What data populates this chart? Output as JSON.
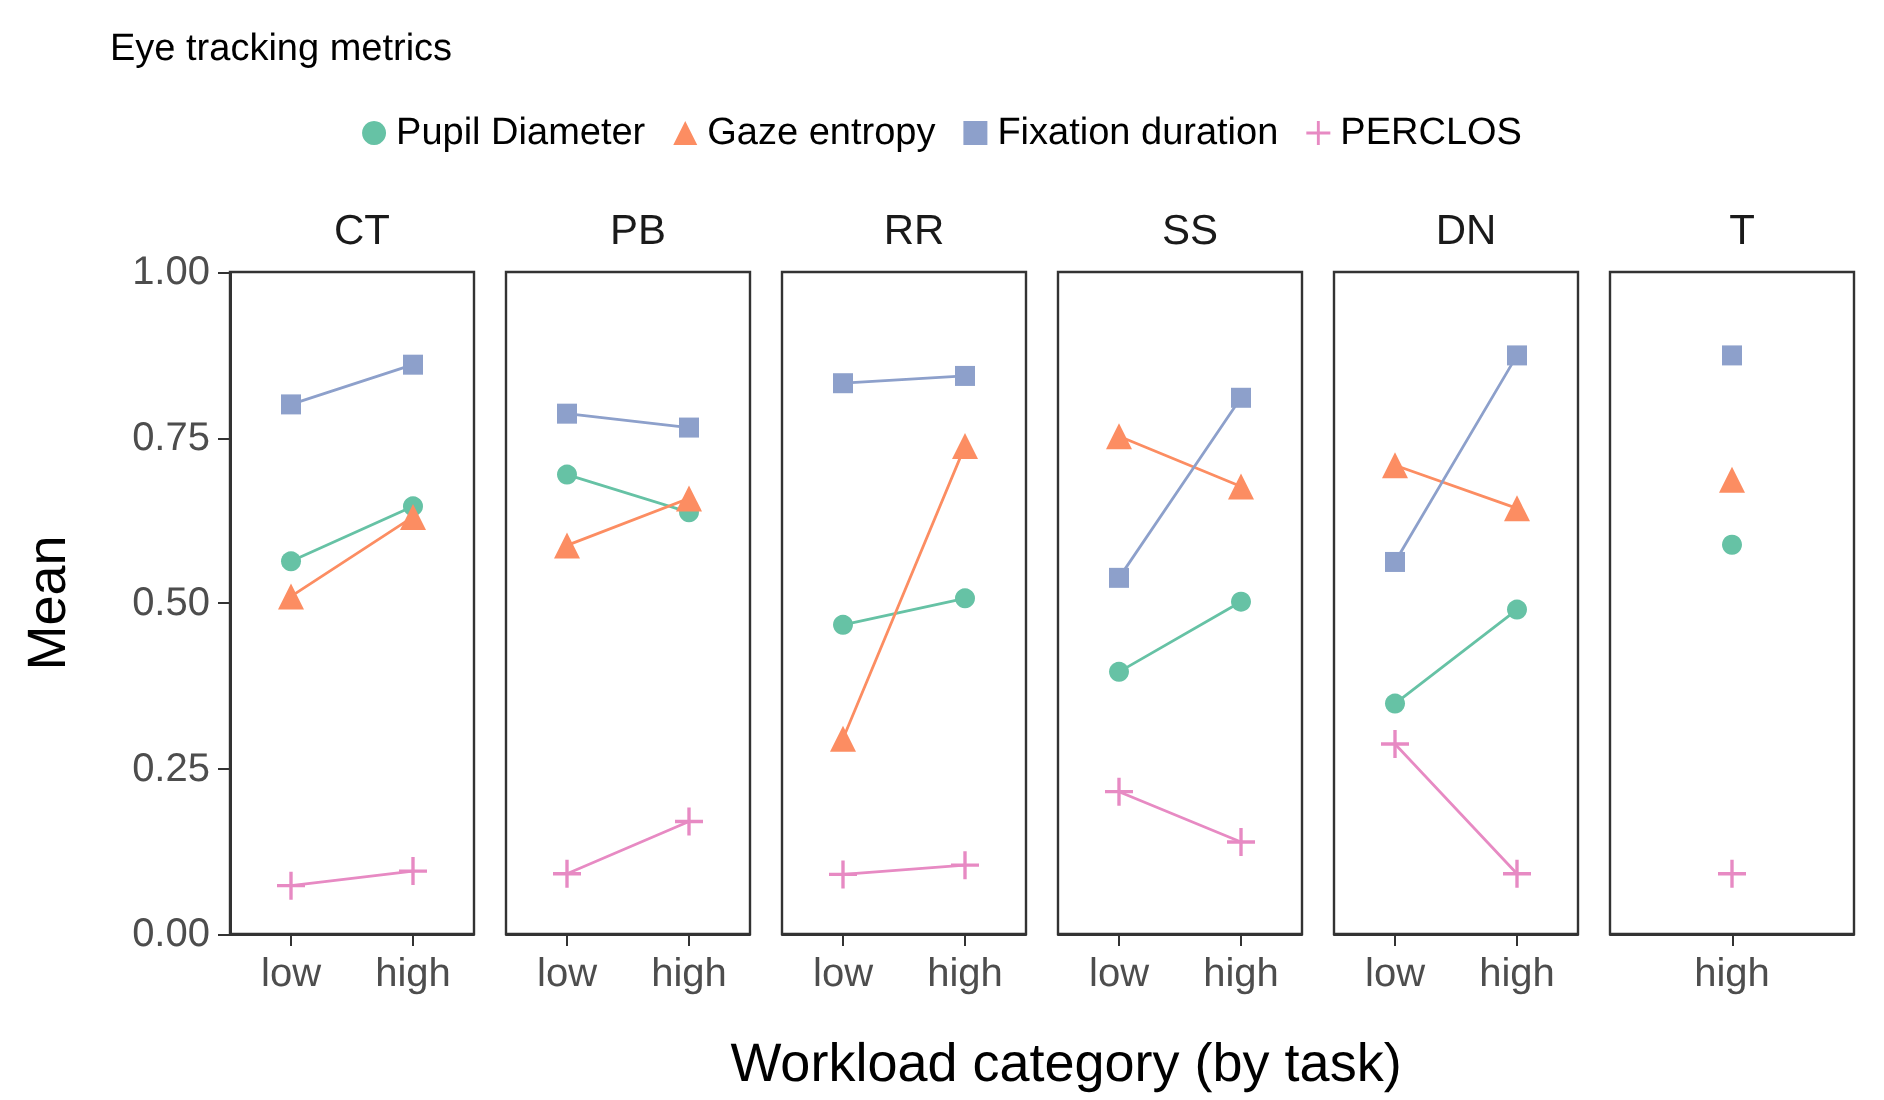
{
  "chart_data": [
    {
      "type": "line",
      "title": "CT",
      "legend_title": "Eye tracking metrics",
      "legend": "top",
      "xlabel": "Workload category (by task)",
      "ylabel": "Mean",
      "categories": [
        "low",
        "high"
      ],
      "ylim": [
        0,
        1
      ],
      "yticks": [
        {
          "value": 0,
          "label": "0.00"
        },
        {
          "value": 0.25,
          "label": "0.25"
        },
        {
          "value": 0.5,
          "label": "0.50"
        },
        {
          "value": 0.75,
          "label": "0.75"
        },
        {
          "value": 1,
          "label": "1.00"
        }
      ],
      "series": [
        {
          "name": "Pupil Diameter",
          "color": "#66c2a5",
          "marker": "circle",
          "values": [
            0.563,
            0.646
          ]
        },
        {
          "name": "Gaze entropy",
          "color": "#fc8d62",
          "marker": "triangle",
          "values": [
            0.51,
            0.63
          ]
        },
        {
          "name": "Fixation duration",
          "color": "#8da0cb",
          "marker": "square",
          "values": [
            0.8,
            0.86
          ]
        },
        {
          "name": "PERCLOS",
          "color": "#e78ac3",
          "marker": "cross",
          "values": [
            0.073,
            0.095
          ]
        }
      ]
    },
    {
      "type": "line",
      "title": "PB",
      "tick_labels": "x",
      "categories": [
        "low",
        "high"
      ],
      "ylim": [
        0,
        1
      ],
      "series": [
        {
          "color": "#66c2a5",
          "marker": "circle",
          "values": [
            0.694,
            0.637
          ]
        },
        {
          "color": "#fc8d62",
          "marker": "triangle",
          "values": [
            0.587,
            0.658
          ]
        },
        {
          "color": "#8da0cb",
          "marker": "square",
          "values": [
            0.786,
            0.765
          ]
        },
        {
          "color": "#e78ac3",
          "marker": "cross",
          "values": [
            0.091,
            0.17
          ]
        }
      ]
    },
    {
      "type": "line",
      "title": "RR",
      "tick_labels": "x",
      "categories": [
        "low",
        "high"
      ],
      "ylim": [
        0,
        1
      ],
      "series": [
        {
          "color": "#66c2a5",
          "marker": "circle",
          "values": [
            0.467,
            0.507
          ]
        },
        {
          "color": "#fc8d62",
          "marker": "triangle",
          "values": [
            0.295,
            0.737
          ]
        },
        {
          "color": "#8da0cb",
          "marker": "square",
          "values": [
            0.832,
            0.843
          ]
        },
        {
          "color": "#e78ac3",
          "marker": "cross",
          "values": [
            0.09,
            0.104
          ]
        }
      ]
    },
    {
      "type": "line",
      "title": "SS",
      "tick_labels": "x",
      "categories": [
        "low",
        "high"
      ],
      "ylim": [
        0,
        1
      ],
      "series": [
        {
          "color": "#66c2a5",
          "marker": "circle",
          "values": [
            0.396,
            0.502
          ]
        },
        {
          "color": "#fc8d62",
          "marker": "triangle",
          "values": [
            0.752,
            0.676
          ]
        },
        {
          "color": "#8da0cb",
          "marker": "square",
          "values": [
            0.538,
            0.81
          ]
        },
        {
          "color": "#e78ac3",
          "marker": "cross",
          "values": [
            0.215,
            0.139
          ]
        }
      ]
    },
    {
      "type": "line",
      "title": "DN",
      "tick_labels": "x",
      "categories": [
        "low",
        "high"
      ],
      "ylim": [
        0,
        1
      ],
      "series": [
        {
          "color": "#66c2a5",
          "marker": "circle",
          "values": [
            0.348,
            0.49
          ]
        },
        {
          "color": "#fc8d62",
          "marker": "triangle",
          "values": [
            0.708,
            0.643
          ]
        },
        {
          "color": "#8da0cb",
          "marker": "square",
          "values": [
            0.562,
            0.874
          ]
        },
        {
          "color": "#e78ac3",
          "marker": "cross",
          "values": [
            0.287,
            0.091
          ]
        }
      ]
    },
    {
      "type": "line",
      "title": "T",
      "tick_labels": "x",
      "categories": [
        "high"
      ],
      "ylim": [
        0,
        1
      ],
      "series": [
        {
          "color": "#66c2a5",
          "marker": "circle",
          "values": [
            0.588
          ]
        },
        {
          "color": "#fc8d62",
          "marker": "triangle",
          "values": [
            0.686
          ]
        },
        {
          "color": "#8da0cb",
          "marker": "square",
          "values": [
            0.874
          ]
        },
        {
          "color": "#e78ac3",
          "marker": "cross",
          "values": [
            0.091
          ]
        }
      ]
    }
  ]
}
